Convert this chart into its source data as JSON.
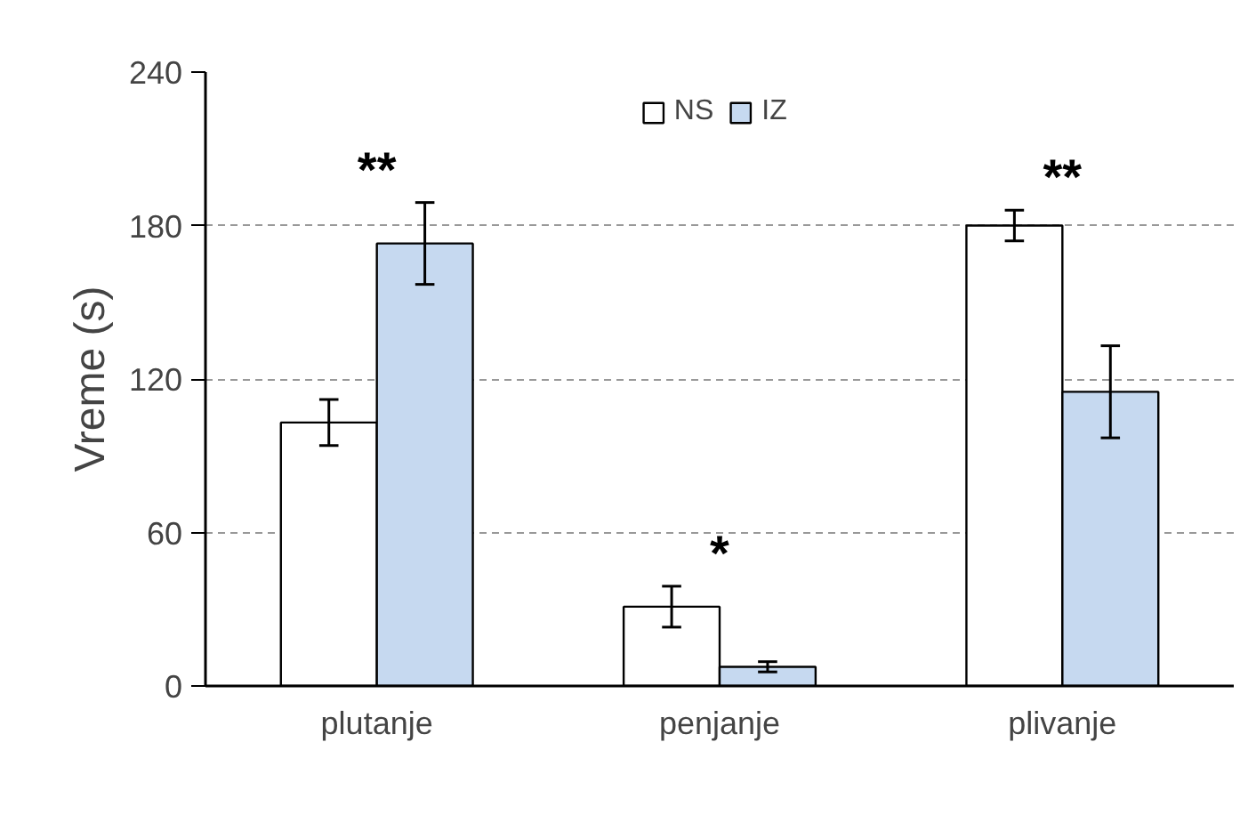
{
  "chart_data": {
    "type": "bar",
    "ylabel": "Vreme (s)",
    "categories": [
      "plutanje",
      "penjanje",
      "plivanje"
    ],
    "series": [
      {
        "name": "NS",
        "color": "#ffffff",
        "values": [
          103,
          31,
          180
        ],
        "errors": [
          9,
          8,
          6
        ]
      },
      {
        "name": "IZ",
        "color": "#c6d9f0",
        "values": [
          173,
          7.5,
          115
        ],
        "errors": [
          16,
          2,
          18
        ]
      }
    ],
    "ylim": [
      0,
      240
    ],
    "yticks": [
      0,
      60,
      120,
      180,
      240
    ],
    "grid": "y",
    "legend": "top",
    "annotations": [
      "**",
      "*",
      "**"
    ]
  }
}
